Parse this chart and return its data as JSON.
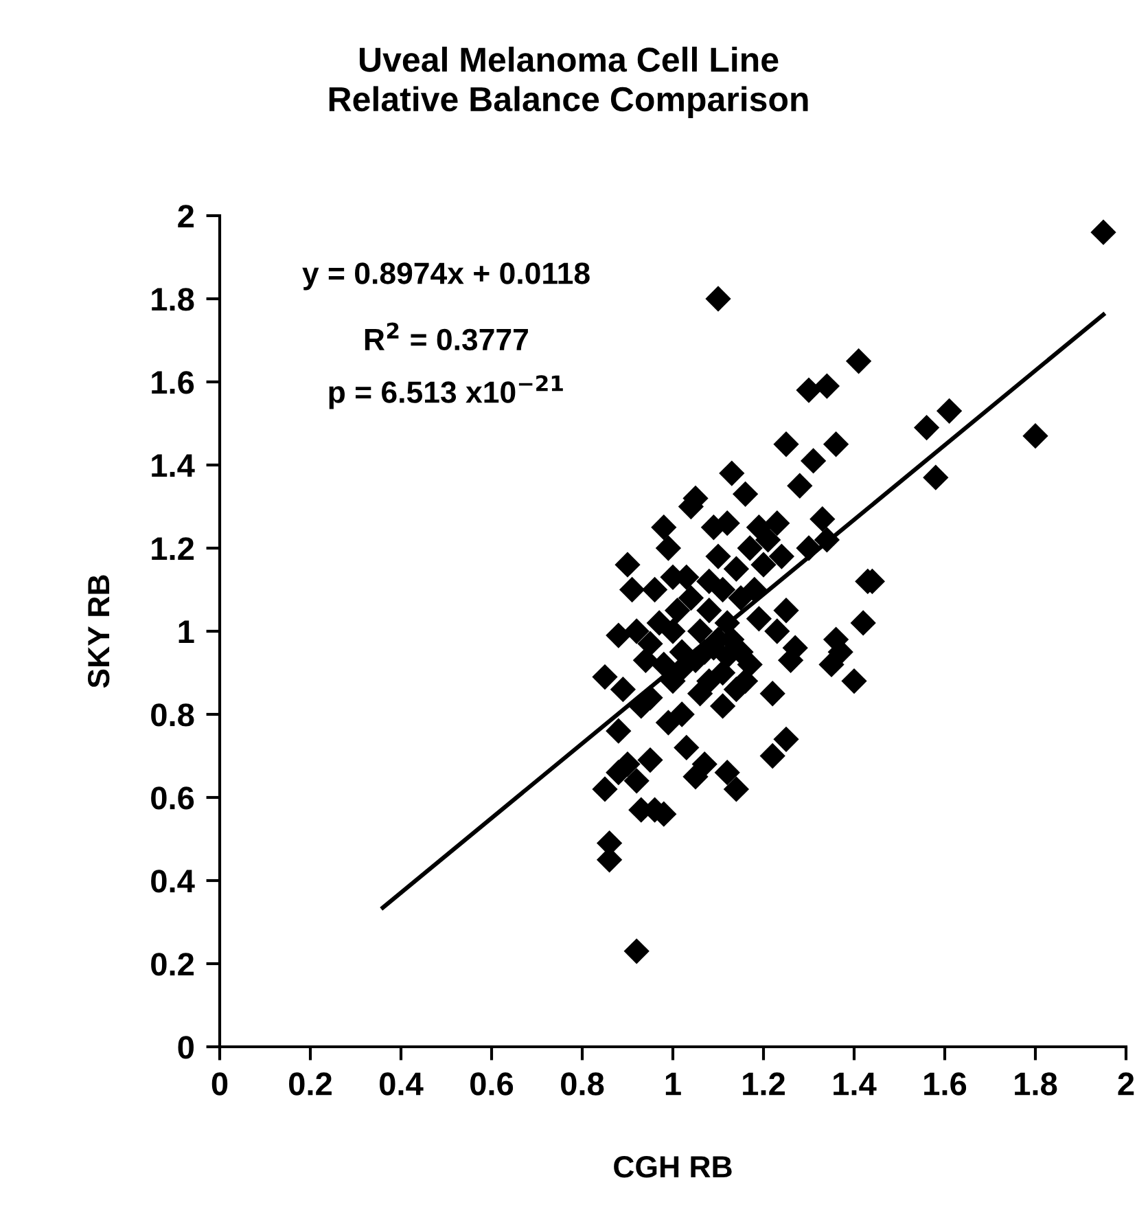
{
  "chart_data": {
    "type": "scatter",
    "title": "Uveal Melanoma Cell Line\nRelative Balance Comparison",
    "xlabel": "CGH RB",
    "ylabel": "SKY RB",
    "annotations": [
      "y = 0.8974x + 0.0118",
      "R$^{2}$ = 0.3777",
      "p = 6.513 x10$^{−21}$"
    ],
    "xlim": [
      0,
      2
    ],
    "ylim": [
      0,
      2
    ],
    "xticks": [
      0,
      0.2,
      0.4,
      0.6,
      0.8,
      1,
      1.2,
      1.4,
      1.6,
      1.8,
      2
    ],
    "yticks": [
      0,
      0.2,
      0.4,
      0.6,
      0.8,
      1,
      1.2,
      1.4,
      1.6,
      1.8,
      2
    ],
    "grid": false,
    "legend": false,
    "series": [
      {
        "type": "scatter",
        "marker": "diamond",
        "color": "#000000",
        "x": [
          1.95,
          1.8,
          1.61,
          1.56,
          1.58,
          1.41,
          1.36,
          1.34,
          1.3,
          1.1,
          1.43,
          1.44,
          1.42,
          1.4,
          1.36,
          1.37,
          1.35,
          1.33,
          1.34,
          1.3,
          1.31,
          1.25,
          1.28,
          1.27,
          1.26,
          1.25,
          1.23,
          1.22,
          1.25,
          1.22,
          1.14,
          1.12,
          0.92,
          0.86,
          0.86,
          0.85,
          0.85,
          0.88,
          0.9,
          0.92,
          0.93,
          0.96,
          0.98,
          0.95,
          0.9,
          0.91,
          0.88,
          0.89,
          0.88,
          0.92,
          0.94,
          0.95,
          0.96,
          0.98,
          0.99,
          1.0,
          1.02,
          1.03,
          1.04,
          1.05,
          1.03,
          1.06,
          1.07,
          1.08,
          1.09,
          1.1,
          1.11,
          1.12,
          1.13,
          1.14,
          1.15,
          1.16,
          1.17,
          1.18,
          1.19,
          1.2,
          1.21,
          1.23,
          1.24,
          1.1,
          1.05,
          1.02,
          1.0,
          0.98,
          0.97,
          1.06,
          1.08,
          1.12,
          1.13,
          1.15,
          1.17,
          1.19,
          1.01,
          1.04,
          0.99,
          1.05,
          1.07,
          1.11,
          1.14,
          1.16,
          0.93,
          0.95,
          1.08,
          1.11,
          1.0,
          1.02,
          1.09,
          1.12
        ],
        "values": [
          1.96,
          1.47,
          1.53,
          1.49,
          1.37,
          1.65,
          1.45,
          1.59,
          1.58,
          1.8,
          1.12,
          1.12,
          1.02,
          0.88,
          0.98,
          0.95,
          0.92,
          1.27,
          1.22,
          1.2,
          1.41,
          1.45,
          1.35,
          0.96,
          0.93,
          1.05,
          1.0,
          0.85,
          0.74,
          0.7,
          0.62,
          0.66,
          0.23,
          0.49,
          0.45,
          0.62,
          0.89,
          0.66,
          0.68,
          0.64,
          0.57,
          0.57,
          0.56,
          0.69,
          1.16,
          1.1,
          0.99,
          0.86,
          0.76,
          1.0,
          0.93,
          0.97,
          1.1,
          1.25,
          1.2,
          0.88,
          0.8,
          0.72,
          1.3,
          1.32,
          1.13,
          1.0,
          0.95,
          1.05,
          1.25,
          1.18,
          0.9,
          1.26,
          1.38,
          1.15,
          1.08,
          1.33,
          1.2,
          1.1,
          1.25,
          1.16,
          1.22,
          1.26,
          1.18,
          0.98,
          0.93,
          0.95,
          1.0,
          0.92,
          1.02,
          0.85,
          0.88,
          1.02,
          0.98,
          0.95,
          0.92,
          1.03,
          1.05,
          1.08,
          0.78,
          0.65,
          0.68,
          0.82,
          0.86,
          0.88,
          0.82,
          0.84,
          1.12,
          1.1,
          1.13,
          0.91,
          0.96,
          0.94
        ]
      },
      {
        "type": "line",
        "line_style": "solid",
        "marker": "none",
        "color": "#000000",
        "x": [
          0.36,
          1.95
        ],
        "values": [
          0.335,
          1.762
        ]
      }
    ]
  }
}
